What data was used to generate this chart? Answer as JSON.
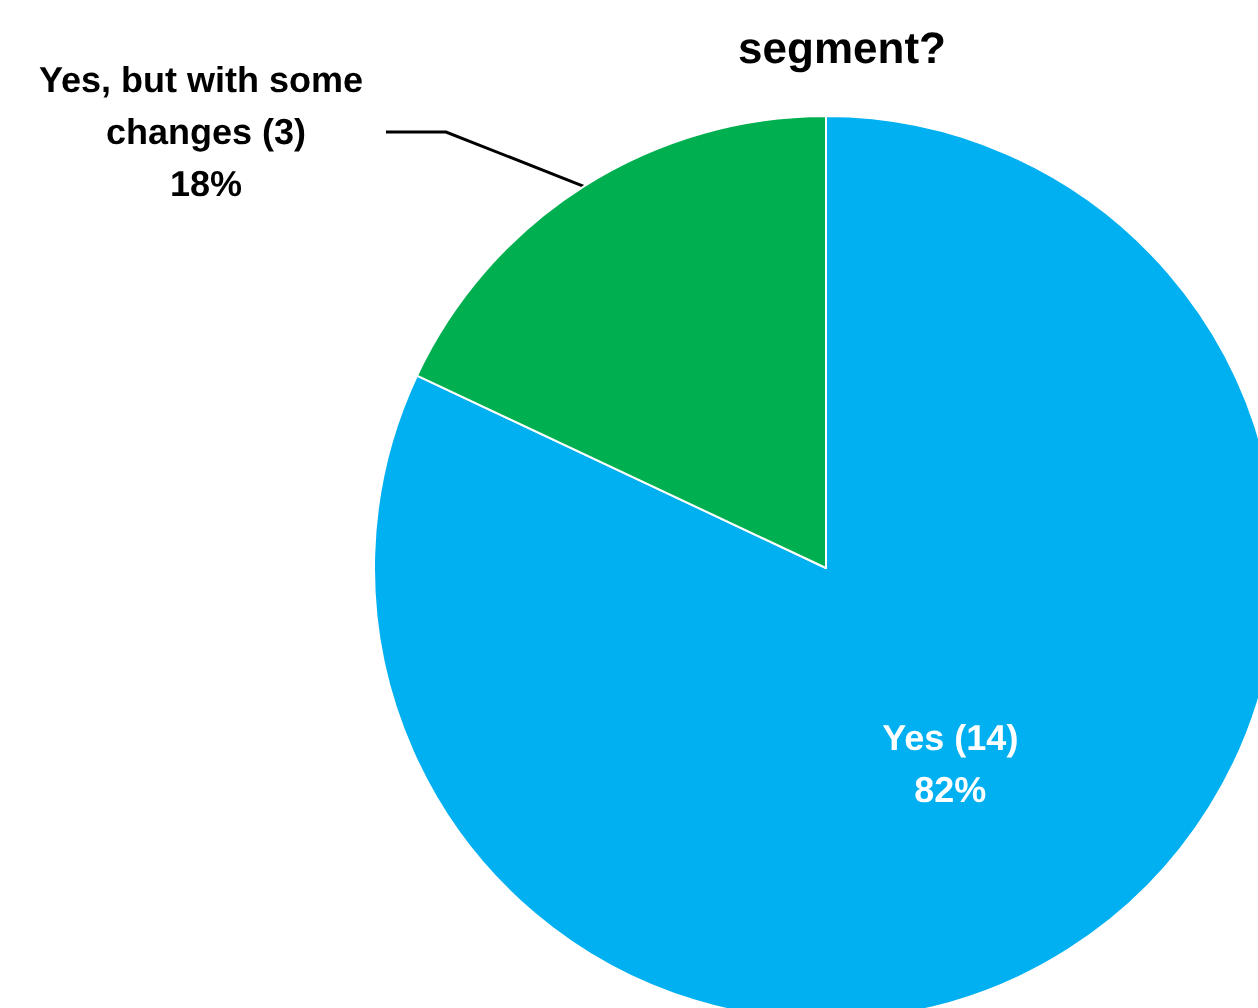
{
  "chart_data": {
    "type": "pie",
    "title": "segment?",
    "categories": [
      "Yes (14)",
      "Yes, but with some changes (3)"
    ],
    "values": [
      82,
      18
    ],
    "colors": [
      "#00b0f0",
      "#00b050"
    ],
    "value_labels": [
      "82%",
      "18%"
    ]
  }
}
